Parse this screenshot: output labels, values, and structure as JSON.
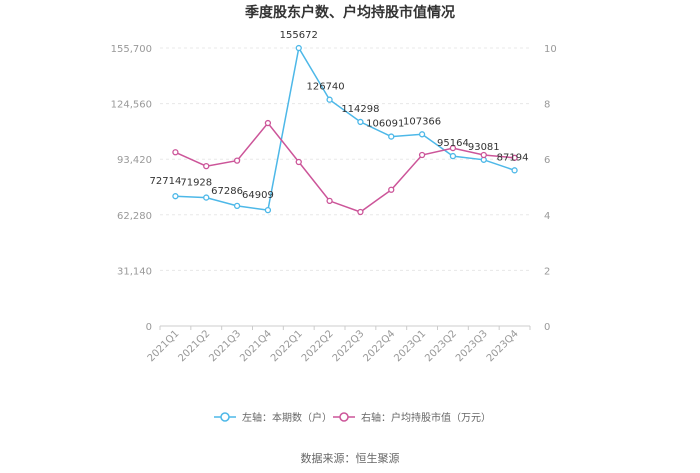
{
  "chart_data": {
    "type": "line",
    "title": "季度股东户数、户均持股市值情况",
    "categories": [
      "2021Q1",
      "2021Q2",
      "2021Q3",
      "2021Q4",
      "2022Q1",
      "2022Q2",
      "2022Q3",
      "2022Q4",
      "2023Q1",
      "2023Q2",
      "2023Q3",
      "2023Q4"
    ],
    "left_axis": {
      "ticks": [
        "0",
        "31,140",
        "62,280",
        "93,420",
        "124,560",
        "155,700"
      ],
      "ylim": [
        0,
        155700
      ]
    },
    "right_axis": {
      "ticks": [
        "0",
        "2",
        "4",
        "6",
        "8",
        "10"
      ],
      "ylim": [
        0,
        10
      ]
    },
    "series": [
      {
        "name": "左轴：本期数（户）",
        "axis": "left",
        "color": "#4db8e8",
        "values": [
          72714,
          71928,
          67286,
          64909,
          155672,
          126740,
          114298,
          106091,
          107366,
          95164,
          93081,
          87194
        ],
        "labels": [
          "72714",
          "71928",
          "67286",
          "64909",
          "155672",
          "126740",
          "114298",
          "106091",
          "107366",
          "95164",
          "93081",
          "87194"
        ]
      },
      {
        "name": "右轴：户均持股市值（万元）",
        "axis": "right",
        "color": "#cc5599",
        "values": [
          6.25,
          5.75,
          5.95,
          7.3,
          5.9,
          4.5,
          4.1,
          4.9,
          6.15,
          6.4,
          6.15,
          6.05
        ]
      }
    ],
    "grid": true,
    "legend": "bottom-center"
  },
  "source": "数据来源：恒生聚源"
}
